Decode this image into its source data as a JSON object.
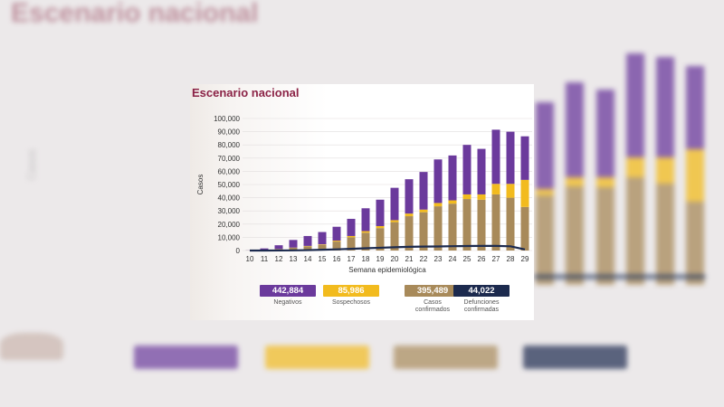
{
  "colors": {
    "negativos": "#6b3a9c",
    "sospechosos": "#f2bb1e",
    "confirmados": "#a88a5a",
    "defunciones": "#1c2a4e",
    "title": "#8b2346"
  },
  "chart_data": {
    "type": "bar",
    "stacked": true,
    "title": "Escenario nacional",
    "xlabel": "Semana epidemiológica",
    "ylabel": "Casos",
    "ylim": [
      0,
      100000
    ],
    "yticks": [
      "0",
      "10,000",
      "20,000",
      "30,000",
      "40,000",
      "50,000",
      "60,000",
      "70,000",
      "80,000",
      "90,000",
      "100,000"
    ],
    "categories": [
      "10",
      "11",
      "12",
      "13",
      "14",
      "15",
      "16",
      "17",
      "18",
      "19",
      "20",
      "21",
      "22",
      "23",
      "24",
      "25",
      "26",
      "27",
      "28",
      "29"
    ],
    "series": [
      {
        "name": "Casos confirmados",
        "values": [
          50,
          400,
          1200,
          2300,
          3200,
          4300,
          6800,
          10000,
          13500,
          17000,
          21500,
          26000,
          29000,
          33500,
          35500,
          39000,
          38500,
          42500,
          40000,
          33000
        ]
      },
      {
        "name": "Sospechosos",
        "values": [
          0,
          0,
          0,
          0,
          300,
          400,
          700,
          1000,
          1200,
          1500,
          1500,
          2000,
          2000,
          2500,
          2500,
          3500,
          4000,
          8000,
          10500,
          20500
        ]
      },
      {
        "name": "Negativos",
        "values": [
          100,
          1200,
          2800,
          5700,
          7500,
          9300,
          10500,
          13000,
          17300,
          20000,
          24500,
          26000,
          28500,
          33000,
          34000,
          37500,
          34500,
          41000,
          39500,
          33000
        ]
      }
    ],
    "line": {
      "name": "Defunciones confirmadas",
      "values": [
        0,
        10,
        50,
        120,
        300,
        600,
        900,
        1300,
        1700,
        2100,
        2500,
        2800,
        3000,
        3100,
        3300,
        3400,
        3500,
        3500,
        3200,
        800
      ]
    },
    "grid": true
  },
  "legend": [
    {
      "value": "442,884",
      "label": "Negativos",
      "color": "#6b3a9c"
    },
    {
      "value": "85,986",
      "label": "Sospechosos",
      "color": "#f2bb1e"
    },
    {
      "value": "395,489",
      "label": "Casos\nconfirmados",
      "color": "#a88a5a"
    },
    {
      "value": "44,022",
      "label": "Defunciones\nconfirmadas",
      "color": "#1c2a4e"
    }
  ]
}
